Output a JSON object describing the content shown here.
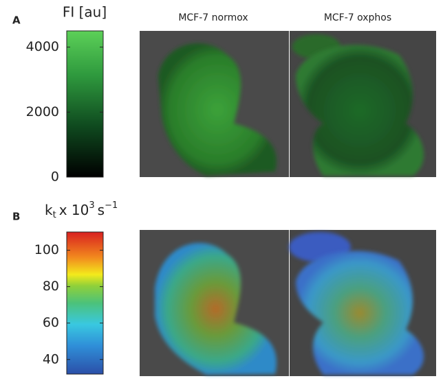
{
  "panels": [
    {
      "label": "A",
      "colorbar": {
        "title": "FI [au]",
        "lim": [
          0,
          4500
        ],
        "ticks": [
          0,
          2000,
          4000
        ]
      }
    },
    {
      "label": "B",
      "colorbar": {
        "title": {
          "base": "k",
          "sub": "t",
          "mid": "x 10",
          "sup": "3",
          "unit": "s",
          "unit_sup": "−1"
        },
        "lim": [
          32,
          110
        ],
        "ticks": [
          40,
          60,
          80,
          100
        ]
      }
    }
  ],
  "image_titles": [
    "MCF-7 normox",
    "MCF-7 oxphos"
  ]
}
